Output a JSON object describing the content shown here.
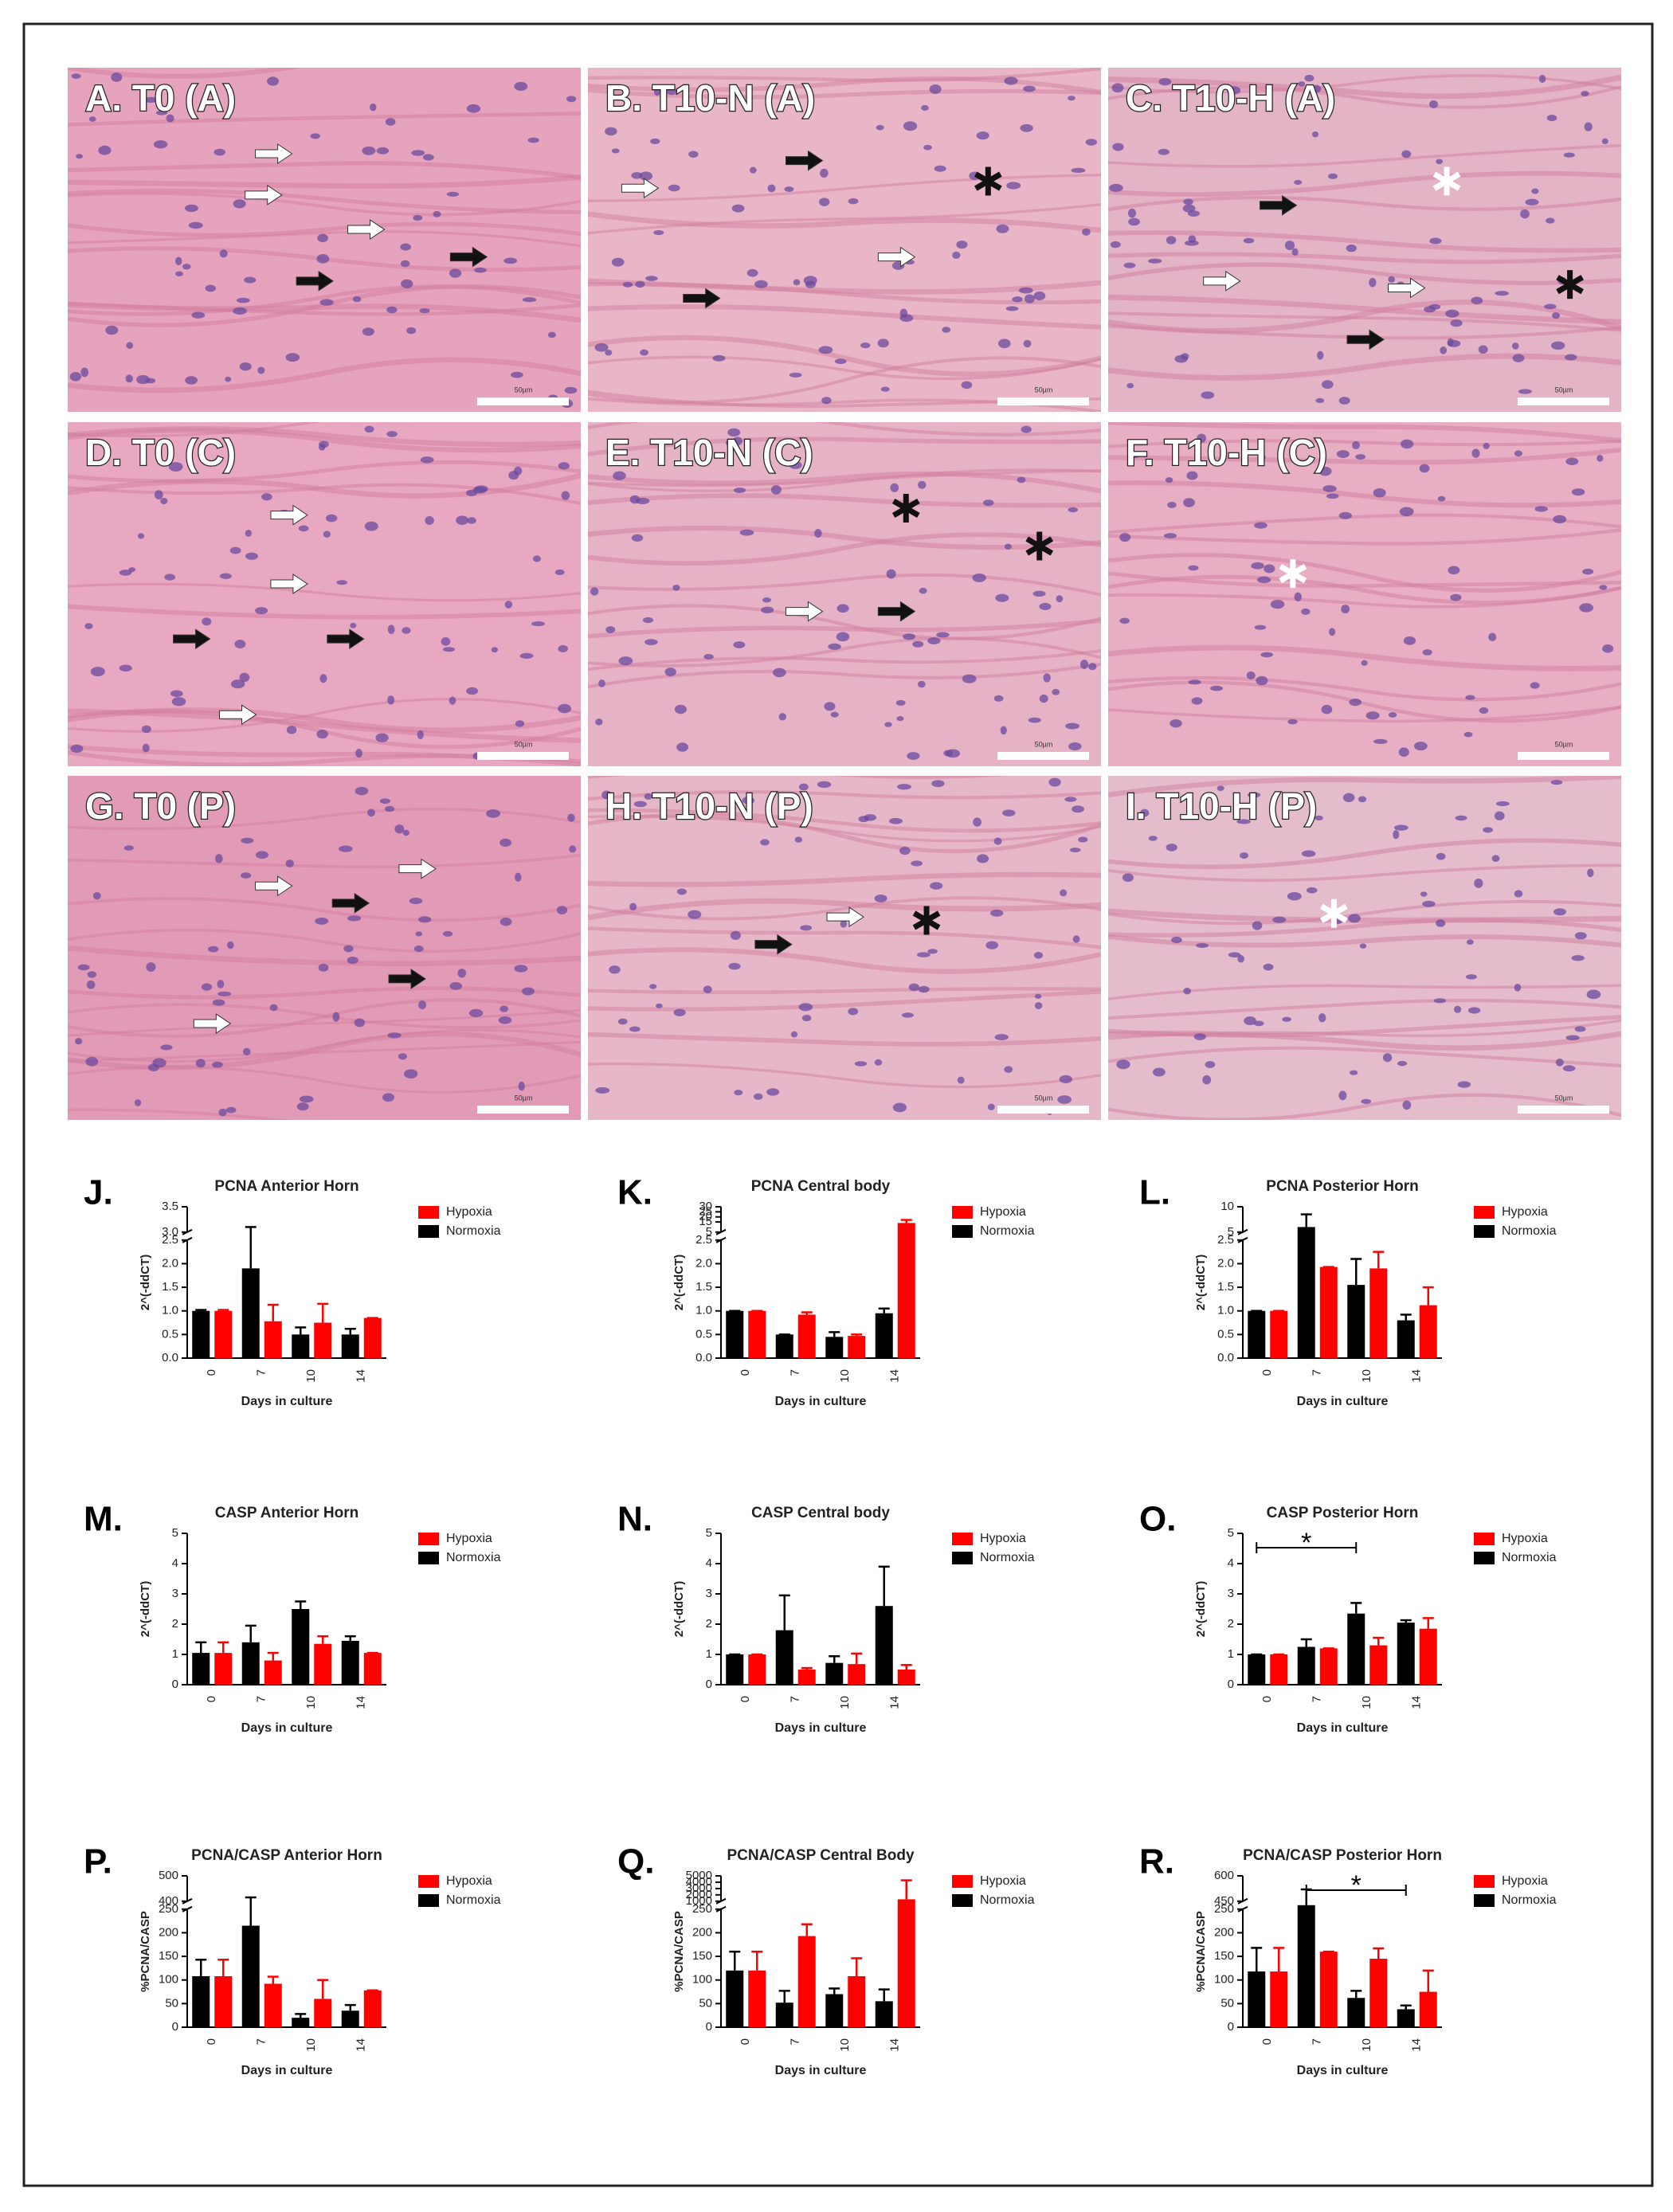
{
  "panels": [
    {
      "label": "A. T0 (A)"
    },
    {
      "label": "B. T10-N (A)"
    },
    {
      "label": "C. T10-H (A)"
    },
    {
      "label": "D. T0 (C)"
    },
    {
      "label": "E. T10-N (C)"
    },
    {
      "label": "F. T10-H (C)"
    },
    {
      "label": "G. T0 (P)"
    },
    {
      "label": "H. T10-N (P)"
    },
    {
      "label": "I. T10-H (P)"
    }
  ],
  "scale_bar": "50µm",
  "chart_data": [
    {
      "type": "bar",
      "panel_label": "J.",
      "title": "PCNA Anterior Horn",
      "ylabel": "2^(-ddCT)",
      "xlabel": "Days in culture",
      "categories": [
        "0",
        "7",
        "10",
        "14"
      ],
      "ylim": [
        0,
        3.5
      ],
      "ybreak": [
        2.5,
        3.0
      ],
      "yticks": [
        {
          "value": 0,
          "label": "0.0"
        },
        {
          "value": 0.5,
          "label": "0.5"
        },
        {
          "value": 1,
          "label": "1.0"
        },
        {
          "value": 1.5,
          "label": "1.5"
        },
        {
          "value": 2,
          "label": "2.0"
        },
        {
          "value": 2.5,
          "label": "2.5"
        },
        {
          "value": 3,
          "label": "3.0"
        },
        {
          "value": 3.5,
          "label": "3.5"
        }
      ],
      "series": [
        {
          "name": "Hypoxia",
          "color": "#ff0000",
          "values": [
            1.0,
            0.78,
            0.75,
            0.85
          ],
          "errors": [
            0.02,
            0.35,
            0.4,
            0
          ]
        },
        {
          "name": "Normoxia",
          "color": "#000000",
          "values": [
            1.0,
            1.9,
            0.5,
            0.5
          ],
          "errors": [
            0.02,
            1.2,
            0.15,
            0.12
          ]
        }
      ]
    },
    {
      "type": "bar",
      "panel_label": "K.",
      "title": "PCNA Central body",
      "ylabel": "2^(-ddCT)",
      "xlabel": "Days in culture",
      "categories": [
        "0",
        "7",
        "10",
        "14"
      ],
      "ylim": [
        0,
        30
      ],
      "ybreak": [
        2.5,
        5
      ],
      "yticks": [
        {
          "value": 0,
          "label": "0.0"
        },
        {
          "value": 0.5,
          "label": "0.5"
        },
        {
          "value": 1,
          "label": "1.0"
        },
        {
          "value": 1.5,
          "label": "1.5"
        },
        {
          "value": 2,
          "label": "2.0"
        },
        {
          "value": 2.5,
          "label": "2.5"
        },
        5,
        15,
        20,
        25,
        30
      ],
      "series": [
        {
          "name": "Hypoxia",
          "color": "#ff0000",
          "values": [
            1.0,
            0.92,
            0.47,
            14
          ],
          "errors": [
            0,
            0.05,
            0.03,
            3
          ]
        },
        {
          "name": "Normoxia",
          "color": "#000000",
          "values": [
            1.0,
            0.5,
            0.45,
            0.95
          ],
          "errors": [
            0,
            0,
            0.1,
            0.1
          ]
        }
      ]
    },
    {
      "type": "bar",
      "panel_label": "L.",
      "title": "PCNA Posterior Horn",
      "ylabel": "2^(-ddCT)",
      "xlabel": "Days in culture",
      "categories": [
        "0",
        "7",
        "10",
        "14"
      ],
      "ylim": [
        0,
        10
      ],
      "ybreak": [
        2.5,
        5
      ],
      "yticks": [
        {
          "value": 0,
          "label": "0.0"
        },
        {
          "value": 0.5,
          "label": "0.5"
        },
        {
          "value": 1,
          "label": "1.0"
        },
        {
          "value": 1.5,
          "label": "1.5"
        },
        {
          "value": 2,
          "label": "2.0"
        },
        {
          "value": 2.5,
          "label": "2.5"
        },
        5,
        10
      ],
      "series": [
        {
          "name": "Hypoxia",
          "color": "#ff0000",
          "values": [
            1.0,
            1.93,
            1.9,
            1.12
          ],
          "errors": [
            0,
            0,
            0.35,
            0.38
          ]
        },
        {
          "name": "Normoxia",
          "color": "#000000",
          "values": [
            1.0,
            6,
            1.55,
            0.8
          ],
          "errors": [
            0,
            2.5,
            0.55,
            0.12
          ]
        }
      ]
    },
    {
      "type": "bar",
      "panel_label": "M.",
      "title": "CASP Anterior Horn",
      "ylabel": "2^(-ddCT)",
      "xlabel": "Days in culture",
      "categories": [
        "0",
        "7",
        "10",
        "14"
      ],
      "ylim": [
        0,
        5
      ],
      "yticks": [
        0,
        1,
        2,
        3,
        4,
        5
      ],
      "series": [
        {
          "name": "Hypoxia",
          "color": "#ff0000",
          "values": [
            1.05,
            0.8,
            1.35,
            1.05
          ],
          "errors": [
            0.35,
            0.25,
            0.25,
            0
          ]
        },
        {
          "name": "Normoxia",
          "color": "#000000",
          "values": [
            1.05,
            1.4,
            2.5,
            1.45
          ],
          "errors": [
            0.35,
            0.55,
            0.25,
            0.15
          ]
        }
      ]
    },
    {
      "type": "bar",
      "panel_label": "N.",
      "title": "CASP Central body",
      "ylabel": "2^(-ddCT)",
      "xlabel": "Days in culture",
      "categories": [
        "0",
        "7",
        "10",
        "14"
      ],
      "ylim": [
        0,
        5
      ],
      "yticks": [
        0,
        1,
        2,
        3,
        4,
        5
      ],
      "series": [
        {
          "name": "Hypoxia",
          "color": "#ff0000",
          "values": [
            1.0,
            0.5,
            0.68,
            0.5
          ],
          "errors": [
            0,
            0.05,
            0.35,
            0.15
          ]
        },
        {
          "name": "Normoxia",
          "color": "#000000",
          "values": [
            1.0,
            1.8,
            0.72,
            2.6
          ],
          "errors": [
            0,
            1.15,
            0.22,
            1.3
          ]
        }
      ]
    },
    {
      "type": "bar",
      "panel_label": "O.",
      "title": "CASP Posterior Horn",
      "ylabel": "2^(-ddCT)",
      "xlabel": "Days in culture",
      "categories": [
        "0",
        "7",
        "10",
        "14"
      ],
      "ylim": [
        0,
        5
      ],
      "yticks": [
        0,
        1,
        2,
        3,
        4,
        5
      ],
      "annotation": "*",
      "series": [
        {
          "name": "Hypoxia",
          "color": "#ff0000",
          "values": [
            1.0,
            1.2,
            1.3,
            1.85
          ],
          "errors": [
            0,
            0,
            0.25,
            0.35
          ]
        },
        {
          "name": "Normoxia",
          "color": "#000000",
          "values": [
            1.0,
            1.25,
            2.35,
            2.05
          ],
          "errors": [
            0,
            0.25,
            0.35,
            0.08
          ]
        }
      ]
    },
    {
      "type": "bar",
      "panel_label": "P.",
      "title": "PCNA/CASP Anterior Horn",
      "ylabel": "%PCNA/CASP",
      "xlabel": "Days in culture",
      "categories": [
        "0",
        "7",
        "10",
        "14"
      ],
      "ylim": [
        0,
        500
      ],
      "ybreak": [
        250,
        400
      ],
      "yticks": [
        0,
        50,
        100,
        150,
        200,
        250,
        400,
        500
      ],
      "series": [
        {
          "name": "Hypoxia",
          "color": "#ff0000",
          "values": [
            108,
            92,
            60,
            78
          ],
          "errors": [
            35,
            15,
            40,
            0
          ]
        },
        {
          "name": "Normoxia",
          "color": "#000000",
          "values": [
            108,
            215,
            20,
            35
          ],
          "errors": [
            35,
            200,
            8,
            12
          ]
        }
      ]
    },
    {
      "type": "bar",
      "panel_label": "Q.",
      "title": "PCNA/CASP Central Body",
      "ylabel": "%PCNA/CASP",
      "xlabel": "Days in culture",
      "categories": [
        "0",
        "7",
        "10",
        "14"
      ],
      "ylim": [
        0,
        5000
      ],
      "ybreak": [
        250,
        1000
      ],
      "yticks": [
        0,
        50,
        100,
        150,
        200,
        250,
        1000,
        2000,
        3000,
        4000,
        5000
      ],
      "series": [
        {
          "name": "Hypoxia",
          "color": "#ff0000",
          "values": [
            120,
            193,
            108,
            1300
          ],
          "errors": [
            40,
            25,
            38,
            3000
          ]
        },
        {
          "name": "Normoxia",
          "color": "#000000",
          "values": [
            120,
            52,
            70,
            55
          ],
          "errors": [
            40,
            25,
            12,
            25
          ]
        }
      ]
    },
    {
      "type": "bar",
      "panel_label": "R.",
      "title": "PCNA/CASP Posterior Horn",
      "ylabel": "%PCNA/CASP",
      "xlabel": "Days in culture",
      "categories": [
        "0",
        "7",
        "10",
        "14"
      ],
      "ylim": [
        0,
        600
      ],
      "ybreak": [
        250,
        450
      ],
      "yticks": [
        0,
        50,
        100,
        150,
        200,
        250,
        450,
        600
      ],
      "annotation": "*",
      "series": [
        {
          "name": "Hypoxia",
          "color": "#ff0000",
          "values": [
            118,
            160,
            145,
            75
          ],
          "errors": [
            50,
            0,
            22,
            45
          ]
        },
        {
          "name": "Normoxia",
          "color": "#000000",
          "values": [
            118,
            420,
            62,
            38
          ],
          "errors": [
            50,
            100,
            15,
            8
          ]
        }
      ]
    }
  ]
}
